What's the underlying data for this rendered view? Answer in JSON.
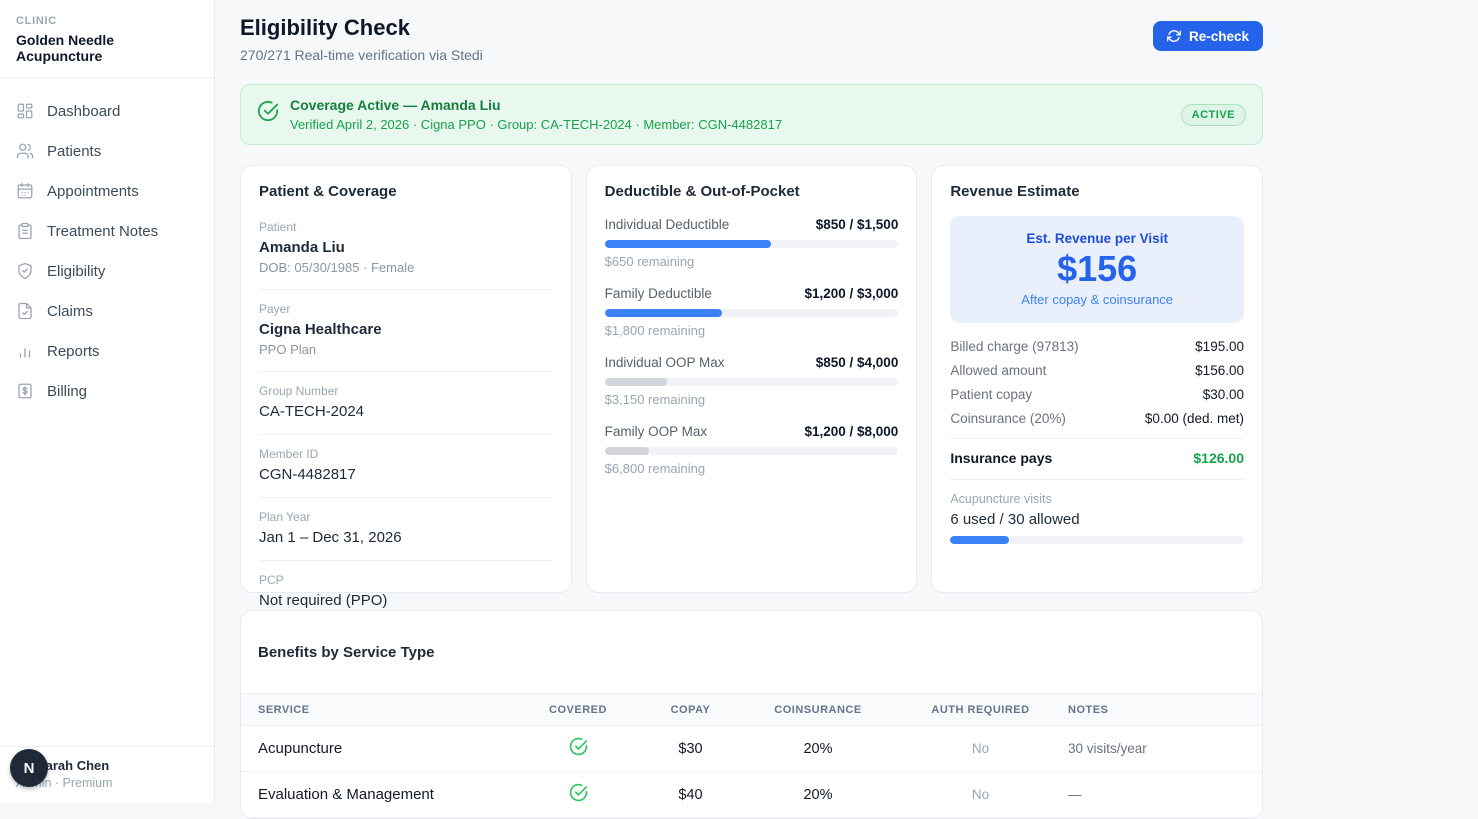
{
  "sidebar": {
    "section_label": "CLINIC",
    "clinic_name": "Golden Needle Acupuncture",
    "items": [
      {
        "label": "Dashboard",
        "icon": "dashboard-icon"
      },
      {
        "label": "Patients",
        "icon": "patients-icon"
      },
      {
        "label": "Appointments",
        "icon": "calendar-icon"
      },
      {
        "label": "Treatment Notes",
        "icon": "clipboard-icon"
      },
      {
        "label": "Eligibility",
        "icon": "shield-check-icon"
      },
      {
        "label": "Claims",
        "icon": "file-check-icon"
      },
      {
        "label": "Reports",
        "icon": "bar-chart-icon"
      },
      {
        "label": "Billing",
        "icon": "billing-icon"
      }
    ],
    "user": {
      "initial": "N",
      "name": "Dr. Sarah Chen",
      "role": "Admin · Premium"
    }
  },
  "header": {
    "title": "Eligibility Check",
    "subtitle": "270/271 Real-time verification via Stedi",
    "recheck_label": "Re-check"
  },
  "banner": {
    "title": "Coverage Active — Amanda Liu",
    "details": "Verified April 2, 2026 · Cigna PPO · Group: CA-TECH-2024 · Member: CGN-4482817",
    "badge": "ACTIVE"
  },
  "patient_card": {
    "title": "Patient & Coverage",
    "fields": [
      {
        "label": "Patient",
        "value": "Amanda Liu",
        "sub": "DOB: 05/30/1985 · Female",
        "bold": true
      },
      {
        "label": "Payer",
        "value": "Cigna Healthcare",
        "sub": "PPO Plan",
        "bold": true
      },
      {
        "label": "Group Number",
        "value": "CA-TECH-2024"
      },
      {
        "label": "Member ID",
        "value": "CGN-4482817"
      },
      {
        "label": "Plan Year",
        "value": "Jan 1 – Dec 31, 2026"
      },
      {
        "label": "PCP",
        "value": "Not required (PPO)"
      }
    ]
  },
  "deductible_card": {
    "title": "Deductible & Out-of-Pocket",
    "meters": [
      {
        "label": "Individual Deductible",
        "amount": "$850 / $1,500",
        "remaining": "$650 remaining",
        "pct": 56.7,
        "fill": "#3b82f6"
      },
      {
        "label": "Family Deductible",
        "amount": "$1,200 / $3,000",
        "remaining": "$1,800 remaining",
        "pct": 40,
        "fill": "#3b82f6"
      },
      {
        "label": "Individual OOP Max",
        "amount": "$850 / $4,000",
        "remaining": "$3,150 remaining",
        "pct": 21.3,
        "fill": "#d1d5db"
      },
      {
        "label": "Family OOP Max",
        "amount": "$1,200 / $8,000",
        "remaining": "$6,800 remaining",
        "pct": 15,
        "fill": "#d1d5db"
      }
    ]
  },
  "revenue_card": {
    "title": "Revenue Estimate",
    "highlight": {
      "label": "Est. Revenue per Visit",
      "amount": "$156",
      "sub": "After copay & coinsurance"
    },
    "rows": [
      {
        "label": "Billed charge (97813)",
        "value": "$195.00"
      },
      {
        "label": "Allowed amount",
        "value": "$156.00"
      },
      {
        "label": "Patient copay",
        "value": "$30.00"
      },
      {
        "label": "Coinsurance (20%)",
        "value": "$0.00 (ded. met)"
      }
    ],
    "total": {
      "label": "Insurance pays",
      "value": "$126.00"
    },
    "visits": {
      "label": "Acupuncture visits",
      "value": "6 used / 30 allowed",
      "pct": 20,
      "fill": "#3b82f6"
    }
  },
  "benefits_table": {
    "title": "Benefits by Service Type",
    "columns": [
      "SERVICE",
      "COVERED",
      "COPAY",
      "COINSURANCE",
      "AUTH REQUIRED",
      "NOTES"
    ],
    "rows": [
      {
        "service": "Acupuncture",
        "covered": true,
        "copay": "$30",
        "coinsurance": "20%",
        "auth": "No",
        "notes": "30 visits/year"
      },
      {
        "service": "Evaluation & Management",
        "covered": true,
        "copay": "$40",
        "coinsurance": "20%",
        "auth": "No",
        "notes": "—"
      }
    ]
  },
  "colors": {
    "accent": "#2563eb",
    "progress_blue": "#3b82f6",
    "progress_gray": "#d1d5db",
    "success": "#16a34a",
    "banner_bg": "#e9f8ef",
    "highlight_bg": "#e9f0fc"
  }
}
